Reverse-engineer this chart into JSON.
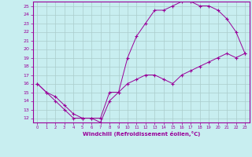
{
  "xlabel": "Windchill (Refroidissement éolien,°C)",
  "bg_color": "#c8eef0",
  "line_color": "#990099",
  "xlim": [
    -0.5,
    23.5
  ],
  "ylim": [
    11.5,
    25.5
  ],
  "xticks": [
    0,
    1,
    2,
    3,
    4,
    5,
    6,
    7,
    8,
    9,
    10,
    11,
    12,
    13,
    14,
    15,
    16,
    17,
    18,
    19,
    20,
    21,
    22,
    23
  ],
  "yticks": [
    12,
    13,
    14,
    15,
    16,
    17,
    18,
    19,
    20,
    21,
    22,
    23,
    24,
    25
  ],
  "line1_x": [
    0,
    1,
    2,
    3,
    4,
    5,
    6,
    7,
    8,
    9,
    10,
    11,
    12,
    13,
    14,
    15,
    16,
    17,
    18,
    19,
    20,
    21,
    22,
    23
  ],
  "line1_y": [
    16,
    15,
    14,
    13,
    12,
    12,
    12,
    12,
    15,
    15,
    19,
    21.5,
    23,
    24.5,
    24.5,
    25,
    25.5,
    25.5,
    25,
    25,
    24.5,
    23.5,
    22,
    19.5
  ],
  "line2_x": [
    0,
    1,
    2,
    3,
    4,
    5,
    6,
    7,
    8,
    9,
    10,
    11,
    12,
    13,
    14,
    15,
    16,
    17,
    18,
    19,
    20,
    21,
    22,
    23
  ],
  "line2_y": [
    16,
    15,
    14.5,
    13.5,
    12.5,
    12,
    12,
    11.5,
    14,
    15,
    16,
    16.5,
    17,
    17,
    16.5,
    16,
    17,
    17.5,
    18,
    18.5,
    19,
    19.5,
    19,
    19.5
  ],
  "grid_color": "#aacccc",
  "marker": "+",
  "markersize": 2.5,
  "linewidth": 0.7,
  "tick_fontsize": 4.5,
  "xlabel_fontsize": 5.0
}
